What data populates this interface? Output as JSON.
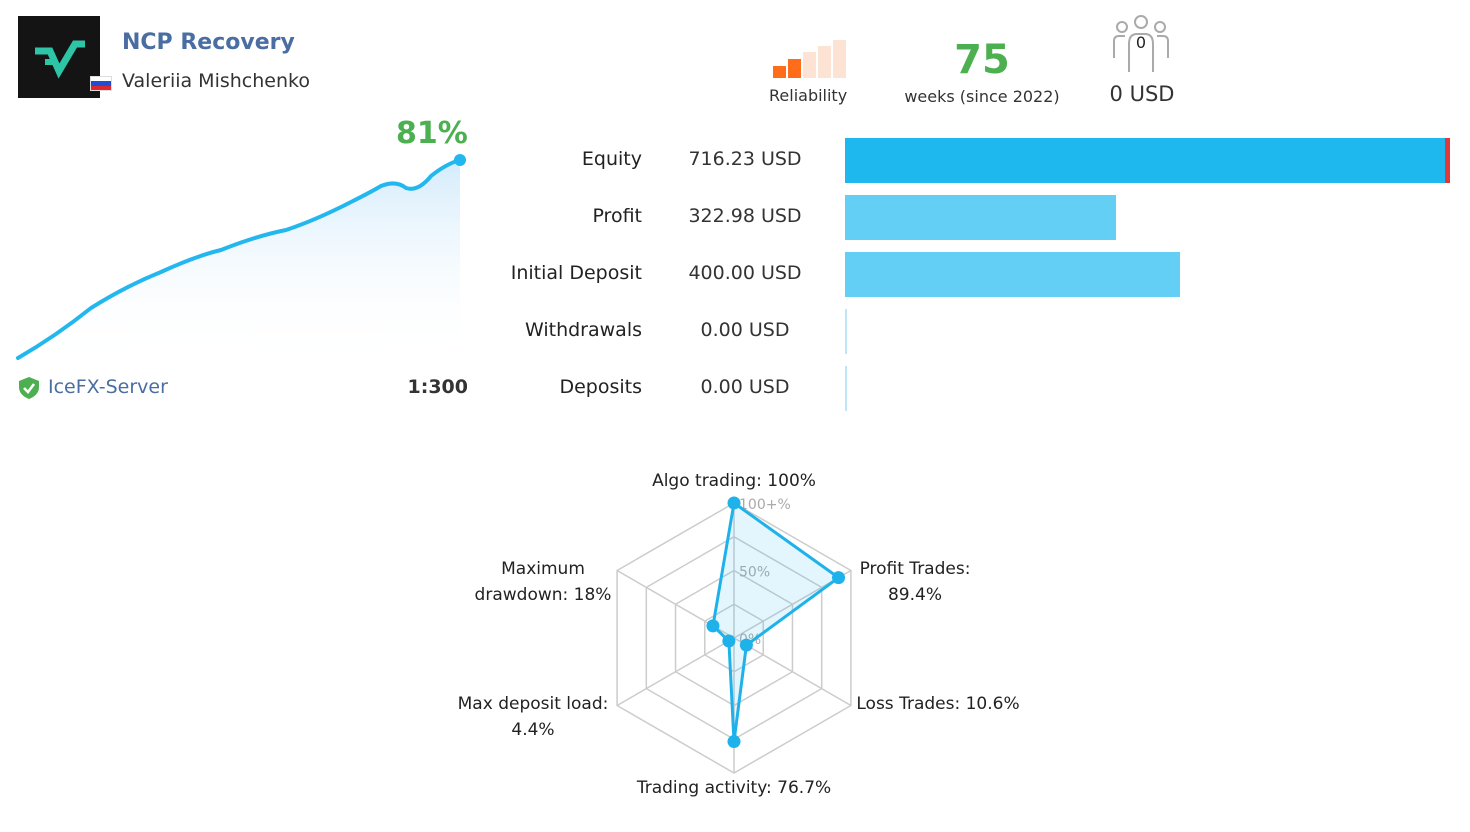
{
  "signal": {
    "name": "NCP Recovery",
    "author": "Valeriia Mishchenko",
    "country_flag": "russia-flag",
    "logo": "signal-logo-check-icon"
  },
  "header_stats": {
    "reliability_label": "Reliability",
    "reliability_level": 2,
    "reliability_max": 5,
    "weeks": "75",
    "weeks_label": "weeks (since 2022)",
    "subscribers": "0",
    "subscription_cost": "0 USD"
  },
  "growth": {
    "value": "81%",
    "server": "IceFX-Server",
    "leverage": "1:300"
  },
  "stats": [
    {
      "label": "Equity",
      "value": "716.23 USD",
      "amount": 716.23
    },
    {
      "label": "Profit",
      "value": "322.98 USD",
      "amount": 322.98
    },
    {
      "label": "Initial Deposit",
      "value": "400.00 USD",
      "amount": 400.0
    },
    {
      "label": "Withdrawals",
      "value": "0.00 USD",
      "amount": 0
    },
    {
      "label": "Deposits",
      "value": "0.00 USD",
      "amount": 0
    }
  ],
  "radar": {
    "scale_labels": [
      "100+%",
      "50%",
      "0%"
    ],
    "axes": [
      {
        "label_lines": [
          "Algo trading: 100%"
        ],
        "value": 100
      },
      {
        "label_lines": [
          "Profit Trades:",
          "89.4%"
        ],
        "value": 89.4
      },
      {
        "label_lines": [
          "Loss Trades: 10.6%"
        ],
        "value": 10.6
      },
      {
        "label_lines": [
          "Trading activity: 76.7%"
        ],
        "value": 76.7
      },
      {
        "label_lines": [
          "Max deposit load:",
          "4.4%"
        ],
        "value": 4.4
      },
      {
        "label_lines": [
          "Maximum",
          "drawdown: 18%"
        ],
        "value": 18
      }
    ]
  },
  "colors": {
    "accent_green": "#4caf50",
    "link_blue": "#4a6ea1",
    "equity_bar": "#1fb8ee",
    "light_bar": "#63cff5",
    "drawdown_red": "#e0383b",
    "reliability_on": "#ff6d1b",
    "reliability_off": "#fde3d3"
  }
}
